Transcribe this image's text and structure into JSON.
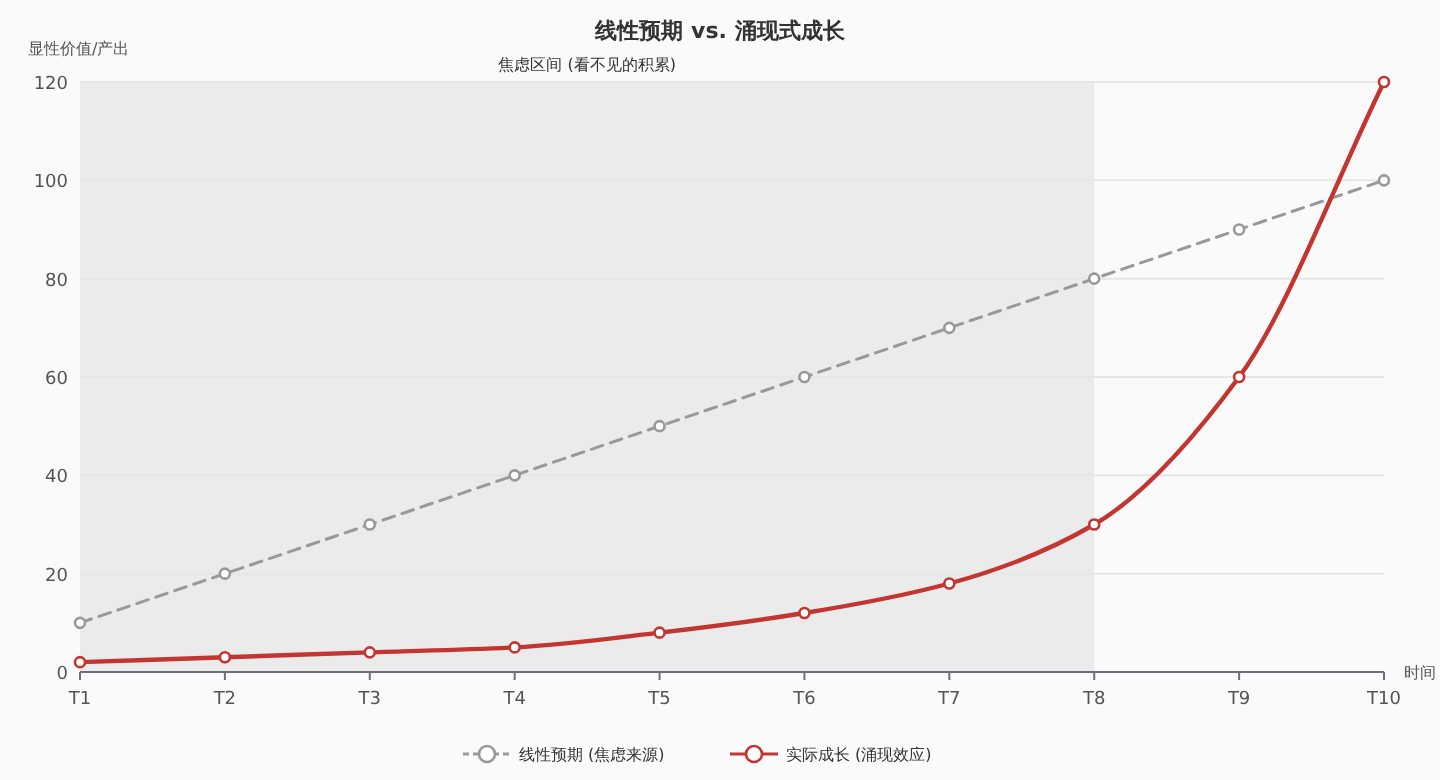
{
  "chart_data": {
    "type": "line",
    "title": "线性预期 vs. 涌现式成长",
    "ylabel": "显性价值/产出",
    "xlabel": "时间",
    "categories": [
      "T1",
      "T2",
      "T3",
      "T4",
      "T5",
      "T6",
      "T7",
      "T8",
      "T9",
      "T10"
    ],
    "series": [
      {
        "name": "线性预期 (焦虑来源)",
        "color": "#999999",
        "line_style": "dashed",
        "values": [
          10,
          20,
          30,
          40,
          50,
          60,
          70,
          80,
          90,
          100
        ]
      },
      {
        "name": "实际成长 (涌现效应)",
        "color": "#c23531",
        "line_style": "solid",
        "values": [
          2,
          3,
          4,
          5,
          8,
          12,
          18,
          30,
          60,
          120
        ]
      }
    ],
    "bands": [
      {
        "axis": "x",
        "from": "T1",
        "to": "T8",
        "label": "焦虑区间 (看不见的积累)",
        "color": "#ebebeb"
      }
    ],
    "ylim": [
      0,
      120
    ],
    "yticks": [
      0,
      20,
      40,
      60,
      80,
      100,
      120
    ],
    "grid": "y",
    "legend": "bottom",
    "marker": "circle"
  }
}
